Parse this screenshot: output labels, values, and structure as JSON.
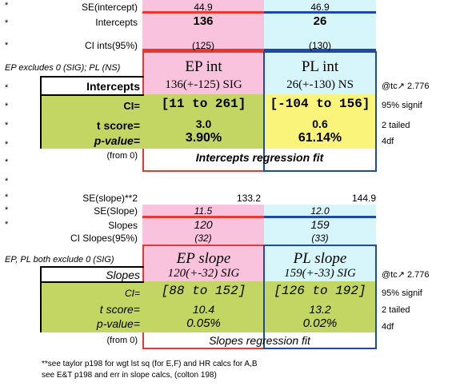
{
  "intercepts": {
    "se_label": "SE(intercept)",
    "se_ep": "44.9",
    "se_pl": "46.9",
    "label": "Intercepts",
    "ep_val": "136",
    "pl_val": "26",
    "ci95_label": "CI ints(95%)",
    "ci95_ep": "(125)",
    "ci95_pl": "(130)",
    "note": "EP excludes 0 (SIG); PL (NS)",
    "ep_header": "EP int",
    "pl_header": "PL int",
    "row_label": "Intercepts",
    "ep_row": "136(+-125) SIG",
    "pl_row": "26(+-130) NS",
    "tc": "@tc↗ 2.776",
    "ci_label": "CI=",
    "ep_ci": "[11 to 261]",
    "pl_ci": "[-104 to 156]",
    "ci_note": "95% signif",
    "t_label": "t score=",
    "ep_t": "3.0",
    "pl_t": "0.6",
    "t_note": "2 tailed",
    "p_label": "p-value=",
    "ep_p": "3.90%",
    "pl_p": "61.14%",
    "p_note": "4df",
    "from0": "(from 0)",
    "fit_label": "Intercepts regression fit"
  },
  "slopes": {
    "sesq_label": "SE(slope)**2",
    "sesq_ep": "133.2",
    "sesq_pl": "144.9",
    "se_label": "SE(Slope)",
    "se_ep": "11.5",
    "se_pl": "12.0",
    "label": "Slopes",
    "ep_val": "120",
    "pl_val": "159",
    "ci95_label": "CI Slopes(95%)",
    "ci95_ep": "(32)",
    "ci95_pl": "(33)",
    "note": "EP, PL both exclude 0 (SIG)",
    "ep_header": "EP slope",
    "pl_header": "PL slope",
    "row_label": "Slopes",
    "ep_row": "120(+-32) SIG",
    "pl_row": "159(+-33) SIG",
    "tc": "@tc↗ 2.776",
    "ci_label": "CI=",
    "ep_ci": "[88 to 152]",
    "pl_ci": "[126 to 192]",
    "ci_note": "95% signif",
    "t_label": "t score=",
    "ep_t": "10.4",
    "pl_t": "13.2",
    "t_note": "2 tailed",
    "p_label": "p-value=",
    "ep_p": "0.05%",
    "pl_p": "0.02%",
    "p_note": "4df",
    "from0": "(from 0)",
    "fit_label": "Slopes regression fit"
  },
  "footnote1": "**see taylor p198 for wgt lst sq (for E,F) and HR calcs for A,B",
  "footnote2": "see E&T p198 and err in slope calcs, (colton 198)",
  "star": "*",
  "colors": {
    "pink": "#f9c3dd",
    "cyan": "#d6f6fb",
    "green": "#c3d663",
    "yellow": "#fbf47a",
    "red": "#e8382f",
    "blue": "#1e49a8"
  }
}
